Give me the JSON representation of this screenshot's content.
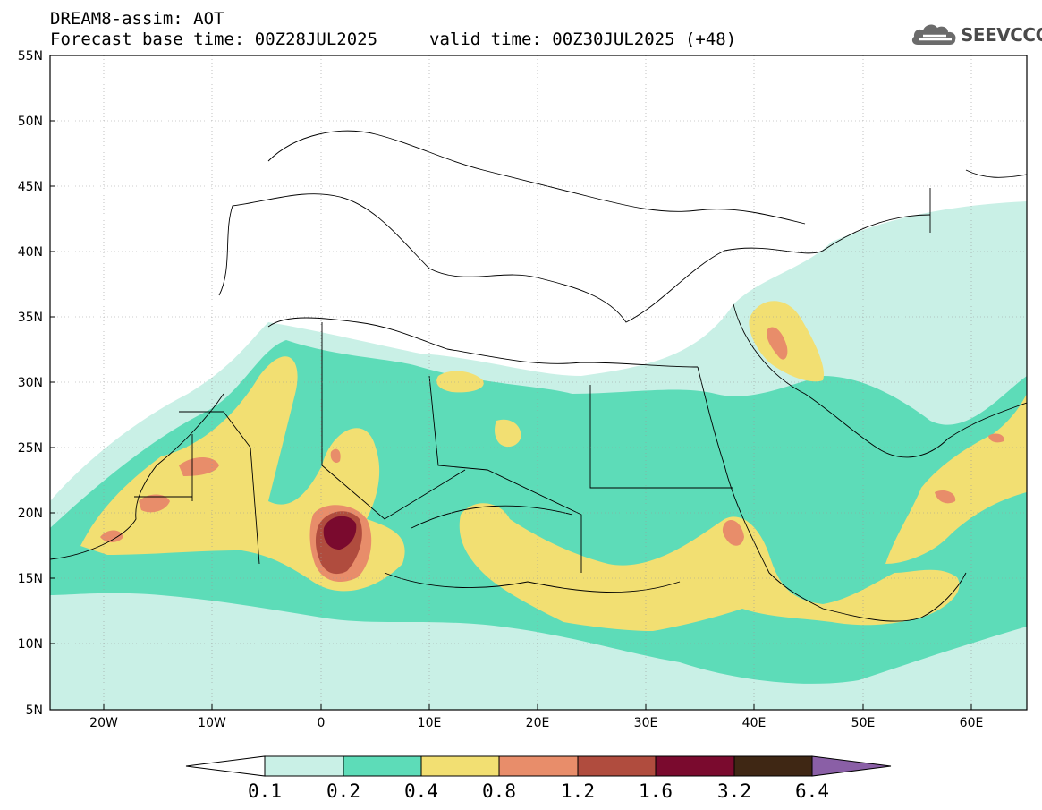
{
  "header": {
    "title": "DREAM8-assim: AOT",
    "base_time": "Forecast base time: 00Z28JUL2025",
    "valid_time": "valid time: 00Z30JUL2025 (+48)"
  },
  "brand": {
    "name": "SEEVCCC",
    "icon": "cloud-logo-icon"
  },
  "map": {
    "lat_labels": [
      "55N",
      "50N",
      "45N",
      "40N",
      "35N",
      "30N",
      "25N",
      "20N",
      "15N",
      "10N",
      "5N"
    ],
    "lon_labels": [
      "20W",
      "10W",
      "0",
      "10E",
      "20E",
      "30E",
      "40E",
      "50E",
      "60E"
    ]
  },
  "colorbar": {
    "levels": [
      "0.1",
      "0.2",
      "0.4",
      "0.8",
      "1.2",
      "1.6",
      "3.2",
      "6.4"
    ],
    "colors": [
      "#c9f0e6",
      "#5ddcb8",
      "#f2df72",
      "#e88d6a",
      "#b04c3e",
      "#7a0a2e",
      "#3f2714"
    ],
    "under_color": "#ffffff",
    "over_color": "#8a5fa6"
  },
  "palette": {
    "c1": "#c9f0e6",
    "c2": "#5ddcb8",
    "c3": "#f2df72",
    "c4": "#e88d6a",
    "c5": "#b04c3e",
    "c6": "#7a0a2e"
  }
}
